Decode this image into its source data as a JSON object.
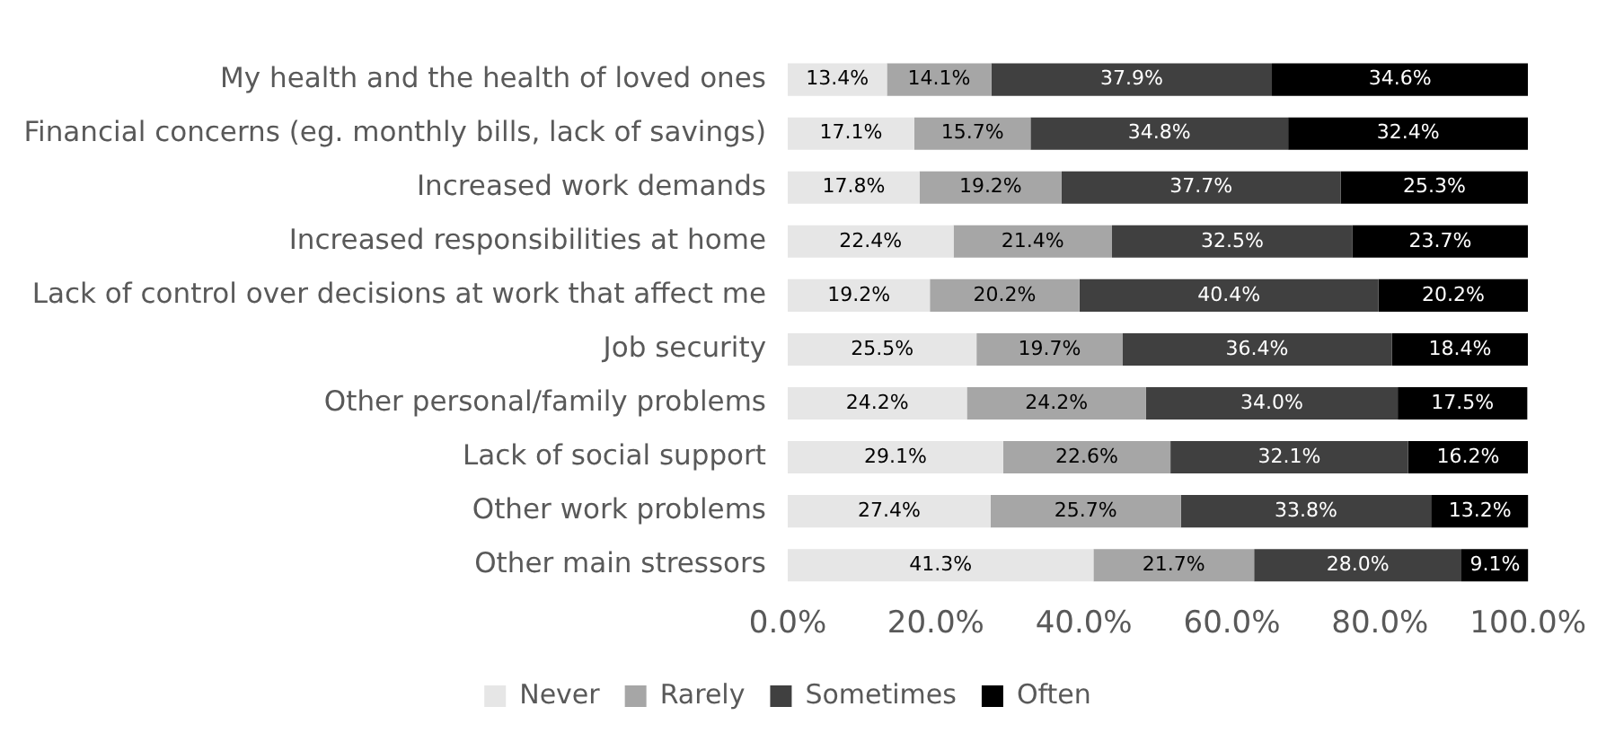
{
  "chart_data": {
    "type": "bar",
    "orientation": "horizontal",
    "stacked": true,
    "categories": [
      "My health and the health of loved ones",
      "Financial concerns (eg. monthly bills, lack of savings)",
      "Increased work demands",
      "Increased responsibilities at home",
      "Lack of control over decisions at work that affect me",
      "Job security",
      "Other personal/family problems",
      "Lack of social support",
      "Other work problems",
      "Other main stressors"
    ],
    "series": [
      {
        "name": "Never",
        "color": "#e6e6e6",
        "values": [
          13.4,
          17.1,
          17.8,
          22.4,
          19.2,
          25.5,
          24.2,
          29.1,
          27.4,
          41.3
        ],
        "value_labels": [
          "13.4%",
          "17.1%",
          "17.8%",
          "22.4%",
          "19.2%",
          "25.5%",
          "24.2%",
          "29.1%",
          "27.4%",
          "41.3%"
        ]
      },
      {
        "name": "Rarely",
        "color": "#a6a6a6",
        "values": [
          14.1,
          15.7,
          19.2,
          21.4,
          20.2,
          19.7,
          24.2,
          22.6,
          25.7,
          21.7
        ],
        "value_labels": [
          "14.1%",
          "15.7%",
          "19.2%",
          "21.4%",
          "20.2%",
          "19.7%",
          "24.2%",
          "22.6%",
          "25.7%",
          "21.7%"
        ]
      },
      {
        "name": "Sometimes",
        "color": "#404040",
        "values": [
          37.9,
          34.8,
          37.7,
          32.5,
          40.4,
          36.4,
          34.0,
          32.1,
          33.8,
          28.0
        ],
        "value_labels": [
          "37.9%",
          "34.8%",
          "37.7%",
          "32.5%",
          "40.4%",
          "36.4%",
          "34.0%",
          "32.1%",
          "33.8%",
          "28.0%"
        ]
      },
      {
        "name": "Often",
        "color": "#000000",
        "values": [
          34.6,
          32.4,
          25.3,
          23.7,
          20.2,
          18.4,
          17.5,
          16.2,
          13.2,
          9.1
        ],
        "value_labels": [
          "34.6%",
          "32.4%",
          "25.3%",
          "23.7%",
          "20.2%",
          "18.4%",
          "17.5%",
          "16.2%",
          "13.2%",
          "9.1%"
        ]
      }
    ],
    "xlim": [
      0,
      100
    ],
    "xticks": [
      {
        "value": 0,
        "label": "0.0%"
      },
      {
        "value": 20,
        "label": "20.0%"
      },
      {
        "value": 40,
        "label": "40.0%"
      },
      {
        "value": 60,
        "label": "60.0%"
      },
      {
        "value": 80,
        "label": "80.0%"
      },
      {
        "value": 100,
        "label": "100.0%"
      }
    ],
    "grid": false,
    "legend": "bottom"
  }
}
